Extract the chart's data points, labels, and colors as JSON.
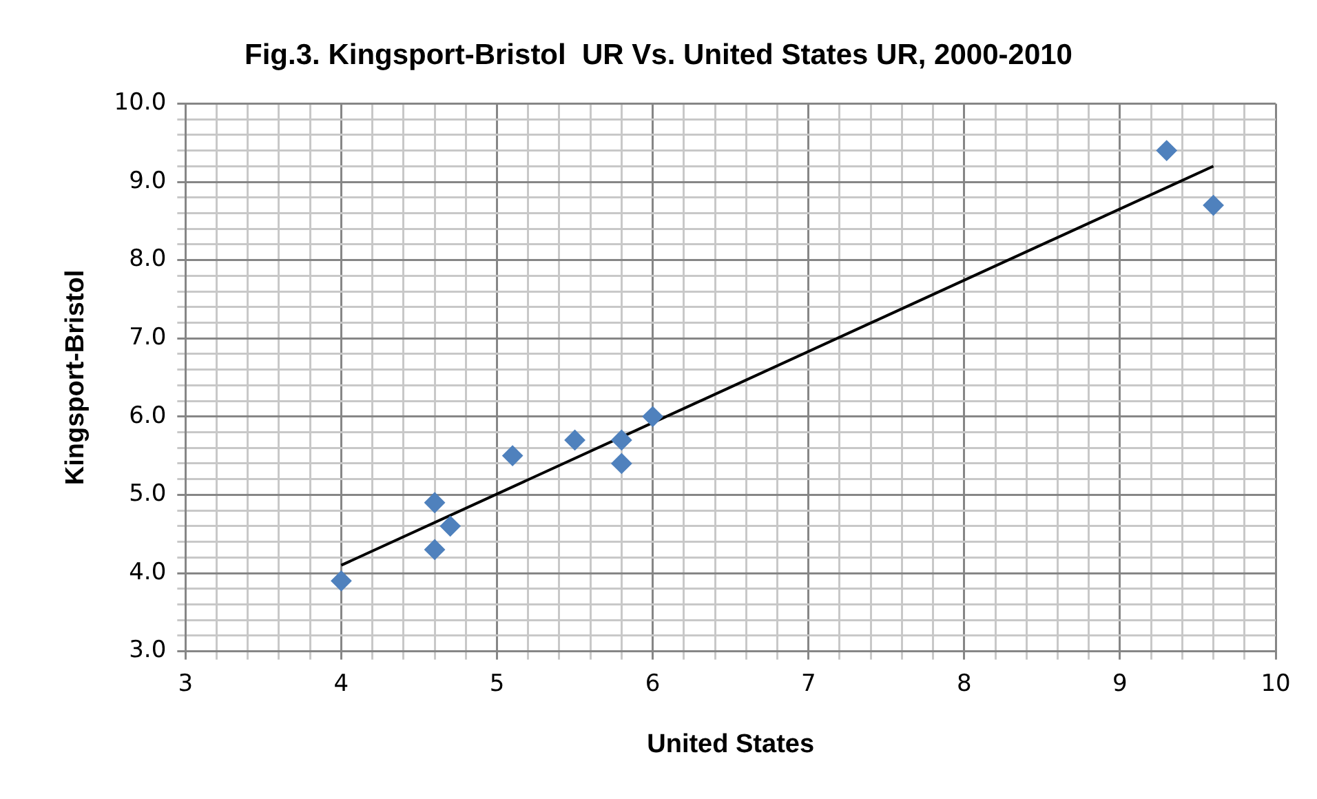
{
  "chart_data": {
    "type": "scatter",
    "title": "Fig.3. Kingsport-Bristol  UR Vs. United States UR, 2000-2010",
    "xlabel": "United States",
    "ylabel": "Kingsport-Bristol",
    "x": [
      4,
      4.6,
      4.6,
      4.7,
      5.1,
      5.5,
      5.8,
      5.8,
      6,
      9.3,
      9.6
    ],
    "series": [
      {
        "color": "#4f81bd",
        "marker": "diamond",
        "values": [
          3.9,
          4.9,
          4.3,
          4.6,
          5.5,
          5.7,
          5.7,
          5.4,
          6.0,
          9.4,
          8.7
        ]
      },
      {
        "type": "line",
        "color": "#000000",
        "marker": "none",
        "line_style": "solid",
        "x": [
          4,
          9.6
        ],
        "values": [
          4.1,
          9.2
        ]
      }
    ],
    "xlim": [
      3,
      10
    ],
    "ylim": [
      3,
      10
    ],
    "xticks": [
      3,
      {
        "value": 3.2,
        "label": null
      },
      {
        "value": 3.4,
        "label": null
      },
      {
        "value": 3.6,
        "label": null
      },
      {
        "value": 3.8,
        "label": null
      },
      4,
      {
        "value": 4.2,
        "label": null
      },
      {
        "value": 4.4,
        "label": null
      },
      {
        "value": 4.6,
        "label": null
      },
      {
        "value": 4.8,
        "label": null
      },
      5,
      {
        "value": 5.2,
        "label": null
      },
      {
        "value": 5.4,
        "label": null
      },
      {
        "value": 5.6,
        "label": null
      },
      {
        "value": 5.8,
        "label": null
      },
      6,
      {
        "value": 6.2,
        "label": null
      },
      {
        "value": 6.4,
        "label": null
      },
      {
        "value": 6.6,
        "label": null
      },
      {
        "value": 6.8,
        "label": null
      },
      7,
      {
        "value": 7.2,
        "label": null
      },
      {
        "value": 7.4,
        "label": null
      },
      {
        "value": 7.6,
        "label": null
      },
      {
        "value": 7.8,
        "label": null
      },
      8,
      {
        "value": 8.2,
        "label": null
      },
      {
        "value": 8.4,
        "label": null
      },
      {
        "value": 8.6,
        "label": null
      },
      {
        "value": 8.8,
        "label": null
      },
      9,
      {
        "value": 9.2,
        "label": null
      },
      {
        "value": 9.4,
        "label": null
      },
      {
        "value": 9.6,
        "label": null
      },
      {
        "value": 9.8,
        "label": null
      },
      10
    ],
    "yticks": [
      {
        "value": 3,
        "label": "3.0"
      },
      {
        "value": 3.2,
        "label": null
      },
      {
        "value": 3.4,
        "label": null
      },
      {
        "value": 3.6,
        "label": null
      },
      {
        "value": 3.8,
        "label": null
      },
      {
        "value": 4,
        "label": "4.0"
      },
      {
        "value": 4.2,
        "label": null
      },
      {
        "value": 4.4,
        "label": null
      },
      {
        "value": 4.6,
        "label": null
      },
      {
        "value": 4.8,
        "label": null
      },
      {
        "value": 5,
        "label": "5.0"
      },
      {
        "value": 5.2,
        "label": null
      },
      {
        "value": 5.4,
        "label": null
      },
      {
        "value": 5.6,
        "label": null
      },
      {
        "value": 5.8,
        "label": null
      },
      {
        "value": 6,
        "label": "6.0"
      },
      {
        "value": 6.2,
        "label": null
      },
      {
        "value": 6.4,
        "label": null
      },
      {
        "value": 6.6,
        "label": null
      },
      {
        "value": 6.8,
        "label": null
      },
      {
        "value": 7,
        "label": "7.0"
      },
      {
        "value": 7.2,
        "label": null
      },
      {
        "value": 7.4,
        "label": null
      },
      {
        "value": 7.6,
        "label": null
      },
      {
        "value": 7.8,
        "label": null
      },
      {
        "value": 8,
        "label": "8.0"
      },
      {
        "value": 8.2,
        "label": null
      },
      {
        "value": 8.4,
        "label": null
      },
      {
        "value": 8.6,
        "label": null
      },
      {
        "value": 8.8,
        "label": null
      },
      {
        "value": 9,
        "label": "9.0"
      },
      {
        "value": 9.2,
        "label": null
      },
      {
        "value": 9.4,
        "label": null
      },
      {
        "value": 9.6,
        "label": null
      },
      {
        "value": 9.8,
        "label": null
      },
      {
        "value": 10,
        "label": "10.0"
      }
    ],
    "grid": true,
    "legend": false
  }
}
